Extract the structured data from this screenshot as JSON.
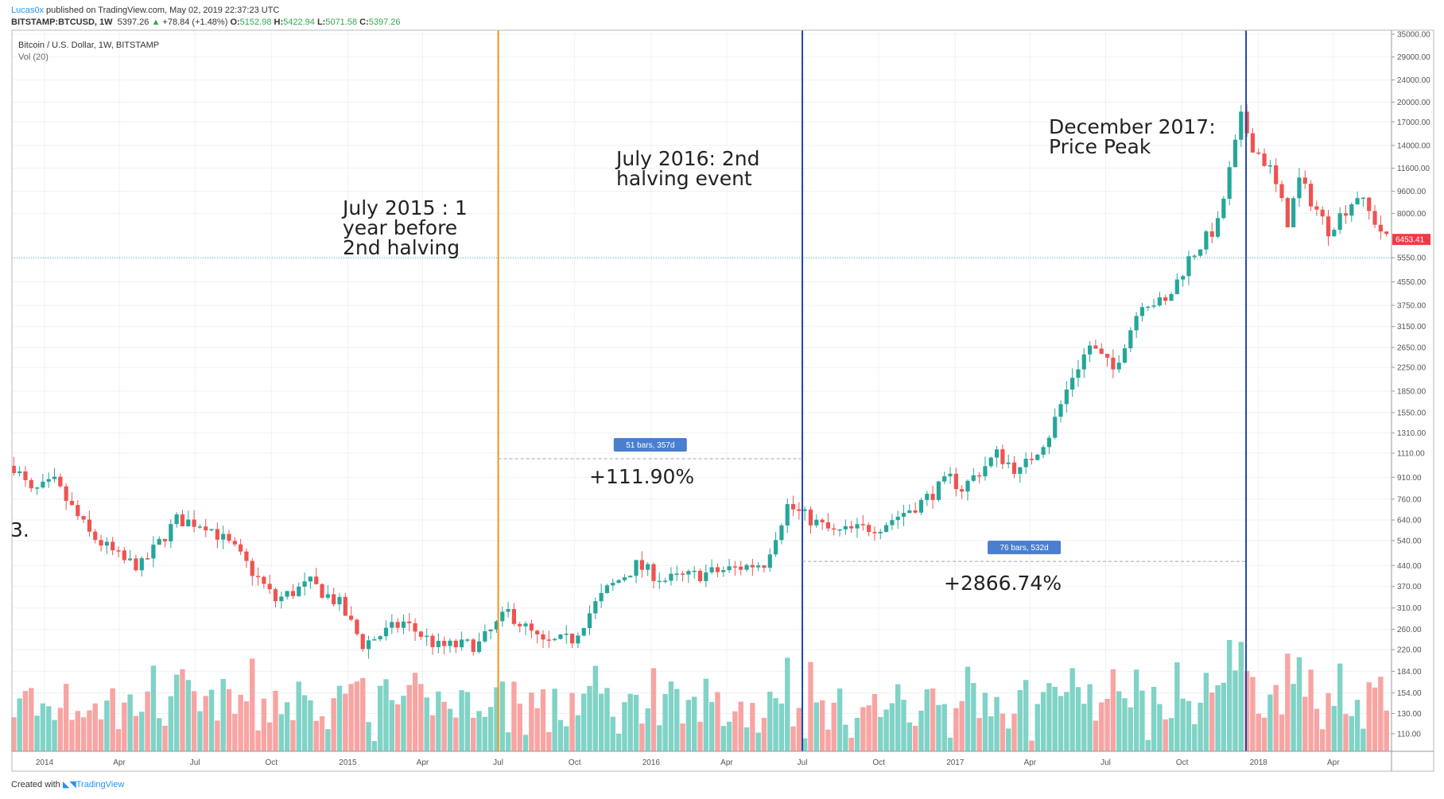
{
  "header": {
    "author": "Lucas0x",
    "published": "published on TradingView.com, May 02, 2019 22:37:23 UTC",
    "symbol": "BITSTAMP:BTCUSD, 1W",
    "last": "5397.26",
    "change": "+78.84 (+1.48%)",
    "o_label": "O:",
    "o": "5152.98",
    "h_label": "H:",
    "h": "5422.94",
    "l_label": "L:",
    "l": "5071.58",
    "c_label": "C:",
    "c": "5397.26"
  },
  "footer": {
    "created_with": "Created with",
    "brand": "TradingView"
  },
  "colors": {
    "up": "#26a69a",
    "down": "#ef5350",
    "vol_up": "#80d3c6",
    "vol_down": "#f7a5a3",
    "orange": "#f7931a",
    "blue": "#1f47a8",
    "price_tag": "#ef3b46"
  },
  "chart_data": {
    "type": "candlestick",
    "title": "Bitcoin / U.S. Dollar, 1W, BITSTAMP",
    "indicator": "Vol (20)",
    "yscale": "log",
    "ylim": [
      100,
      35000
    ],
    "y_ticks": [
      "35000.00",
      "29000.00",
      "24000.00",
      "20000.00",
      "17000.00",
      "14000.00",
      "11600.00",
      "9600.00",
      "8000.00",
      "5550.00",
      "4550.00",
      "3750.00",
      "3150.00",
      "2650.00",
      "2250.00",
      "1850.00",
      "1550.00",
      "1310.00",
      "1110.00",
      "910.00",
      "760.00",
      "640.00",
      "540.00",
      "440.00",
      "370.00",
      "310.00",
      "260.00",
      "220.00",
      "184.00",
      "154.00",
      "130.00",
      "110.00"
    ],
    "x_ticks": [
      {
        "label": "2014",
        "date": "2014-01-01"
      },
      {
        "label": "Apr",
        "date": "2014-04-01"
      },
      {
        "label": "Jul",
        "date": "2014-07-01"
      },
      {
        "label": "Oct",
        "date": "2014-10-01"
      },
      {
        "label": "2015",
        "date": "2015-01-01"
      },
      {
        "label": "Apr",
        "date": "2015-04-01"
      },
      {
        "label": "Jul",
        "date": "2015-07-01"
      },
      {
        "label": "Oct",
        "date": "2015-10-01"
      },
      {
        "label": "2016",
        "date": "2016-01-01"
      },
      {
        "label": "Apr",
        "date": "2016-04-01"
      },
      {
        "label": "Jul",
        "date": "2016-07-01"
      },
      {
        "label": "Oct",
        "date": "2016-10-01"
      },
      {
        "label": "2017",
        "date": "2017-01-01"
      },
      {
        "label": "Apr",
        "date": "2017-04-01"
      },
      {
        "label": "Jul",
        "date": "2017-07-01"
      },
      {
        "label": "Oct",
        "date": "2017-10-01"
      },
      {
        "label": "2018",
        "date": "2018-01-01"
      },
      {
        "label": "Apr",
        "date": "2018-04-01"
      }
    ],
    "price_keypoints": [
      [
        "2013-11-25",
        1000
      ],
      [
        "2013-12-16",
        800
      ],
      [
        "2014-01-13",
        870
      ],
      [
        "2014-02-24",
        570
      ],
      [
        "2014-04-07",
        455
      ],
      [
        "2014-04-28",
        440
      ],
      [
        "2014-06-09",
        640
      ],
      [
        "2014-07-14",
        620
      ],
      [
        "2014-08-18",
        500
      ],
      [
        "2014-10-06",
        330
      ],
      [
        "2014-11-17",
        380
      ],
      [
        "2014-12-22",
        320
      ],
      [
        "2015-01-19",
        230
      ],
      [
        "2015-03-09",
        275
      ],
      [
        "2015-04-20",
        225
      ],
      [
        "2015-06-08",
        230
      ],
      [
        "2015-07-13",
        300
      ],
      [
        "2015-08-24",
        230
      ],
      [
        "2015-09-28",
        240
      ],
      [
        "2015-10-26",
        320
      ],
      [
        "2015-11-09",
        360
      ],
      [
        "2015-12-14",
        440
      ],
      [
        "2016-01-18",
        390
      ],
      [
        "2016-03-14",
        415
      ],
      [
        "2016-05-16",
        450
      ],
      [
        "2016-06-13",
        720
      ],
      [
        "2016-07-04",
        660
      ],
      [
        "2016-08-08",
        575
      ],
      [
        "2016-10-03",
        610
      ],
      [
        "2016-11-21",
        740
      ],
      [
        "2016-12-26",
        900
      ],
      [
        "2017-01-09",
        830
      ],
      [
        "2017-02-20",
        1100
      ],
      [
        "2017-03-20",
        950
      ],
      [
        "2017-04-24",
        1300
      ],
      [
        "2017-05-22",
        2100
      ],
      [
        "2017-06-12",
        2700
      ],
      [
        "2017-07-10",
        2200
      ],
      [
        "2017-08-14",
        3900
      ],
      [
        "2017-09-11",
        3800
      ],
      [
        "2017-10-09",
        5500
      ],
      [
        "2017-11-13",
        7300
      ],
      [
        "2017-12-11",
        17500
      ],
      [
        "2017-12-25",
        14000
      ],
      [
        "2018-01-15",
        11500
      ],
      [
        "2018-02-05",
        7500
      ],
      [
        "2018-02-19",
        10500
      ],
      [
        "2018-03-26",
        7000
      ],
      [
        "2018-04-30",
        9300
      ],
      [
        "2018-05-21",
        7500
      ],
      [
        "2018-06-04",
        6453
      ]
    ],
    "last_price": "6453.41",
    "horizontal_line": 5550,
    "events": [
      {
        "date": "2015-07-01",
        "color": "orange",
        "label": [
          "July 2015 : 1",
          "year before",
          "2nd halving"
        ]
      },
      {
        "date": "2016-07-01",
        "color": "blue",
        "label": [
          "July 2016: 2nd",
          "halving event"
        ]
      },
      {
        "date": "2017-12-17",
        "color": "blue",
        "label": [
          "December 2017:",
          "Price Peak"
        ]
      }
    ],
    "measures": [
      {
        "from": "2015-07-01",
        "to": "2016-07-01",
        "price": 1060,
        "tag": "51 bars, 357d",
        "change": "+111.90%"
      },
      {
        "from": "2016-07-01",
        "to": "2017-12-17",
        "price": 455,
        "tag": "76 bars, 532d",
        "change": "+2866.74%"
      }
    ],
    "side_text": "3."
  }
}
